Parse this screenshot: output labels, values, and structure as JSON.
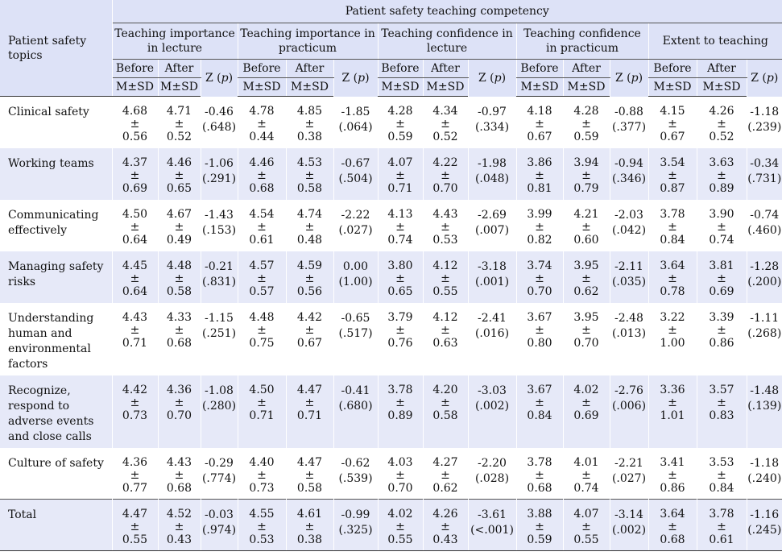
{
  "header": {
    "topic_label": "Patient safety topics",
    "super_label": "Patient safety teaching competency",
    "groups": [
      "Teaching importance in lecture",
      "Teaching importance in practicum",
      "Teaching confidence in lecture",
      "Teaching confidence in practicum",
      "Extent to teaching"
    ],
    "before_label": "Before",
    "after_label": "After",
    "z_label": "Z (",
    "p_label": "p",
    "z_close": ")",
    "msd_label": "M±SD"
  },
  "rows": [
    {
      "topic": "Clinical safety",
      "cells": [
        {
          "b_m": "4.68",
          "b_sd": "0.56",
          "a_m": "4.71",
          "a_sd": "0.52",
          "z": "-0.46",
          "p": "(.648)"
        },
        {
          "b_m": "4.78",
          "b_sd": "0.44",
          "a_m": "4.85",
          "a_sd": "0.38",
          "z": "-1.85",
          "p": "(.064)"
        },
        {
          "b_m": "4.28",
          "b_sd": "0.59",
          "a_m": "4.34",
          "a_sd": "0.52",
          "z": "-0.97",
          "p": "(.334)"
        },
        {
          "b_m": "4.18",
          "b_sd": "0.67",
          "a_m": "4.28",
          "a_sd": "0.59",
          "z": "-0.88",
          "p": "(.377)"
        },
        {
          "b_m": "4.15",
          "b_sd": "0.67",
          "a_m": "4.26",
          "a_sd": "0.52",
          "z": "-1.18",
          "p": "(.239)"
        }
      ]
    },
    {
      "topic": "Working teams",
      "cells": [
        {
          "b_m": "4.37",
          "b_sd": "0.69",
          "a_m": "4.46",
          "a_sd": "0.65",
          "z": "-1.06",
          "p": "(.291)"
        },
        {
          "b_m": "4.46",
          "b_sd": "0.68",
          "a_m": "4.53",
          "a_sd": "0.58",
          "z": "-0.67",
          "p": "(.504)"
        },
        {
          "b_m": "4.07",
          "b_sd": "0.71",
          "a_m": "4.22",
          "a_sd": "0.70",
          "z": "-1.98",
          "p": "(.048)"
        },
        {
          "b_m": "3.86",
          "b_sd": "0.81",
          "a_m": "3.94",
          "a_sd": "0.79",
          "z": "-0.94",
          "p": "(.346)"
        },
        {
          "b_m": "3.54",
          "b_sd": "0.87",
          "a_m": "3.63",
          "a_sd": "0.89",
          "z": "-0.34",
          "p": "(.731)"
        }
      ]
    },
    {
      "topic": "Communicating effectively",
      "cells": [
        {
          "b_m": "4.50",
          "b_sd": "0.64",
          "a_m": "4.67",
          "a_sd": "0.49",
          "z": "-1.43",
          "p": "(.153)"
        },
        {
          "b_m": "4.54",
          "b_sd": "0.61",
          "a_m": "4.74",
          "a_sd": "0.48",
          "z": "-2.22",
          "p": "(.027)"
        },
        {
          "b_m": "4.13",
          "b_sd": "0.74",
          "a_m": "4.43",
          "a_sd": "0.53",
          "z": "-2.69",
          "p": "(.007)"
        },
        {
          "b_m": "3.99",
          "b_sd": "0.82",
          "a_m": "4.21",
          "a_sd": "0.60",
          "z": "-2.03",
          "p": "(.042)"
        },
        {
          "b_m": "3.78",
          "b_sd": "0.84",
          "a_m": "3.90",
          "a_sd": "0.74",
          "z": "-0.74",
          "p": "(.460)"
        }
      ]
    },
    {
      "topic": "Managing safety risks",
      "cells": [
        {
          "b_m": "4.45",
          "b_sd": "0.64",
          "a_m": "4.48",
          "a_sd": "0.58",
          "z": "-0.21",
          "p": "(.831)"
        },
        {
          "b_m": "4.57",
          "b_sd": "0.57",
          "a_m": "4.59",
          "a_sd": "0.56",
          "z": "0.00",
          "p": "(1.00)"
        },
        {
          "b_m": "3.80",
          "b_sd": "0.65",
          "a_m": "4.12",
          "a_sd": "0.55",
          "z": "-3.18",
          "p": "(.001)"
        },
        {
          "b_m": "3.74",
          "b_sd": "0.70",
          "a_m": "3.95",
          "a_sd": "0.62",
          "z": "-2.11",
          "p": "(.035)"
        },
        {
          "b_m": "3.64",
          "b_sd": "0.78",
          "a_m": "3.81",
          "a_sd": "0.69",
          "z": "-1.28",
          "p": "(.200)"
        }
      ]
    },
    {
      "topic": "Understanding human and environmental factors",
      "cells": [
        {
          "b_m": "4.43",
          "b_sd": "0.71",
          "a_m": "4.33",
          "a_sd": "0.68",
          "z": "-1.15",
          "p": "(.251)"
        },
        {
          "b_m": "4.48",
          "b_sd": "0.75",
          "a_m": "4.42",
          "a_sd": "0.67",
          "z": "-0.65",
          "p": "(.517)"
        },
        {
          "b_m": "3.79",
          "b_sd": "0.76",
          "a_m": "4.12",
          "a_sd": "0.63",
          "z": "-2.41",
          "p": "(.016)"
        },
        {
          "b_m": "3.67",
          "b_sd": "0.80",
          "a_m": "3.95",
          "a_sd": "0.70",
          "z": "-2.48",
          "p": "(.013)"
        },
        {
          "b_m": "3.22",
          "b_sd": "1.00",
          "a_m": "3.39",
          "a_sd": "0.86",
          "z": "-1.11",
          "p": "(.268)"
        }
      ]
    },
    {
      "topic": "Recognize, respond to adverse events and close calls",
      "cells": [
        {
          "b_m": "4.42",
          "b_sd": "0.73",
          "a_m": "4.36",
          "a_sd": "0.70",
          "z": "-1.08",
          "p": "(.280)"
        },
        {
          "b_m": "4.50",
          "b_sd": "0.71",
          "a_m": "4.47",
          "a_sd": "0.71",
          "z": "-0.41",
          "p": "(.680)"
        },
        {
          "b_m": "3.78",
          "b_sd": "0.89",
          "a_m": "4.20",
          "a_sd": "0.58",
          "z": "-3.03",
          "p": "(.002)"
        },
        {
          "b_m": "3.67",
          "b_sd": "0.84",
          "a_m": "4.02",
          "a_sd": "0.69",
          "z": "-2.76",
          "p": "(.006)"
        },
        {
          "b_m": "3.36",
          "b_sd": "1.01",
          "a_m": "3.57",
          "a_sd": "0.83",
          "z": "-1.48",
          "p": "(.139)"
        }
      ]
    },
    {
      "topic": "Culture of safety",
      "cells": [
        {
          "b_m": "4.36",
          "b_sd": "0.77",
          "a_m": "4.43",
          "a_sd": "0.68",
          "z": "-0.29",
          "p": "(.774)"
        },
        {
          "b_m": "4.40",
          "b_sd": "0.73",
          "a_m": "4.47",
          "a_sd": "0.58",
          "z": "-0.62",
          "p": "(.539)"
        },
        {
          "b_m": "4.03",
          "b_sd": "0.70",
          "a_m": "4.27",
          "a_sd": "0.62",
          "z": "-2.20",
          "p": "(.028)"
        },
        {
          "b_m": "3.78",
          "b_sd": "0.68",
          "a_m": "4.01",
          "a_sd": "0.74",
          "z": "-2.21",
          "p": "(.027)"
        },
        {
          "b_m": "3.41",
          "b_sd": "0.86",
          "a_m": "3.53",
          "a_sd": "0.84",
          "z": "-1.18",
          "p": "(.240)"
        }
      ]
    },
    {
      "topic": "Total",
      "cells": [
        {
          "b_m": "4.47",
          "b_sd": "0.55",
          "a_m": "4.52",
          "a_sd": "0.43",
          "z": "-0.03",
          "p": "(.974)"
        },
        {
          "b_m": "4.55",
          "b_sd": "0.53",
          "a_m": "4.61",
          "a_sd": "0.38",
          "z": "-0.99",
          "p": "(.325)"
        },
        {
          "b_m": "4.02",
          "b_sd": "0.55",
          "a_m": "4.26",
          "a_sd": "0.43",
          "z": "-3.61",
          "p": "(<.001)"
        },
        {
          "b_m": "3.88",
          "b_sd": "0.59",
          "a_m": "4.07",
          "a_sd": "0.55",
          "z": "-3.14",
          "p": "(.002)"
        },
        {
          "b_m": "3.64",
          "b_sd": "0.68",
          "a_m": "3.78",
          "a_sd": "0.61",
          "z": "-1.16",
          "p": "(.245)"
        }
      ]
    }
  ]
}
